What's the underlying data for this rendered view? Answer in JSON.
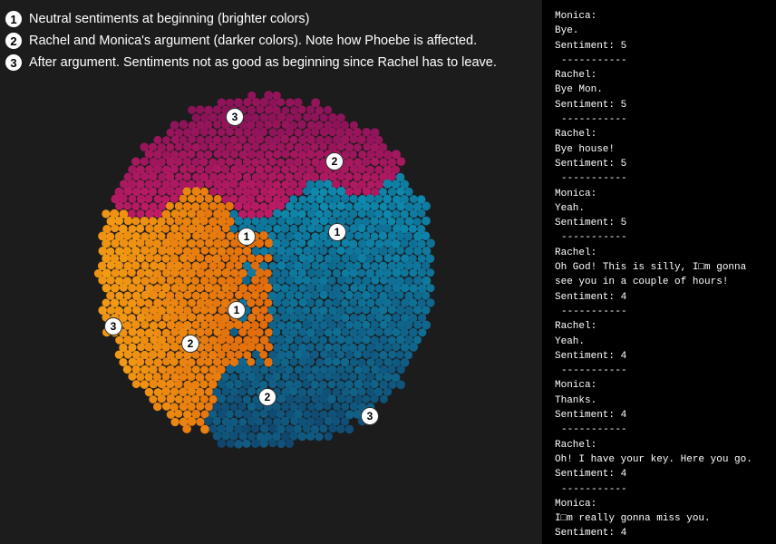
{
  "legend": [
    {
      "num": "1",
      "text": "Neutral sentiments at beginning (brighter colors)"
    },
    {
      "num": "2",
      "text": "Rachel and Monica's argument (darker colors). Note how Phoebe is affected."
    },
    {
      "num": "3",
      "text": "After argument. Sentiments not as good as beginning since Rachel has to leave."
    }
  ],
  "markers": [
    "3",
    "2",
    "1",
    "1",
    "1",
    "3",
    "2",
    "2",
    "3"
  ],
  "colors": {
    "magenta_bright": "#d21f6a",
    "magenta_dark": "#8a1358",
    "orange_bright": "#f29b14",
    "orange_dark": "#e06a0c",
    "blue_bright": "#0f8bb0",
    "blue_dark": "#10466e"
  },
  "transcript": [
    {
      "speaker": "Monica:",
      "lines": [
        "Bye."
      ],
      "sentiment": "Sentiment: 5"
    },
    {
      "speaker": "Rachel:",
      "lines": [
        "Bye Mon."
      ],
      "sentiment": "Sentiment: 5"
    },
    {
      "speaker": "Rachel:",
      "lines": [
        "Bye house!"
      ],
      "sentiment": "Sentiment: 5"
    },
    {
      "speaker": "Monica:",
      "lines": [
        "Yeah."
      ],
      "sentiment": "Sentiment: 5"
    },
    {
      "speaker": "Rachel:",
      "lines": [
        "Oh God! This is silly, I□m gonna",
        "see you in a couple of hours!"
      ],
      "sentiment": "Sentiment: 4"
    },
    {
      "speaker": "Rachel:",
      "lines": [
        "Yeah."
      ],
      "sentiment": "Sentiment: 4"
    },
    {
      "speaker": "Monica:",
      "lines": [
        "Thanks."
      ],
      "sentiment": "Sentiment: 4"
    },
    {
      "speaker": "Rachel:",
      "lines": [
        "Oh! I have your key. Here you go."
      ],
      "sentiment": "Sentiment: 4"
    },
    {
      "speaker": "Monica:",
      "lines": [
        "I□m really gonna miss you."
      ],
      "sentiment": "Sentiment: 4"
    }
  ],
  "separator": "-----------"
}
